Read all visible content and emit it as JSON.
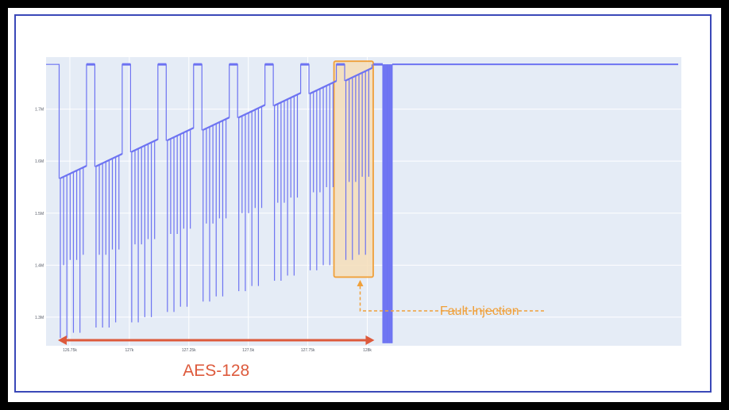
{
  "chart_data": {
    "type": "line",
    "title": "",
    "xlabel": "",
    "ylabel": "",
    "xlim": [
      126.65,
      129.32
    ],
    "ylim": [
      1.245,
      1.8
    ],
    "grid": true,
    "x_ticks": [
      {
        "value": 126.75,
        "label": "126.75k"
      },
      {
        "value": 127.0,
        "label": "127k"
      },
      {
        "value": 127.25,
        "label": "127.25k"
      },
      {
        "value": 127.5,
        "label": "127.5k"
      },
      {
        "value": 127.75,
        "label": "127.75k"
      },
      {
        "value": 128.0,
        "label": "128k"
      }
    ],
    "y_ticks": [
      {
        "value": 1.3,
        "label": "1.3M"
      },
      {
        "value": 1.4,
        "label": "1.4M"
      },
      {
        "value": 1.5,
        "label": "1.5M"
      },
      {
        "value": 1.6,
        "label": "1.6M"
      },
      {
        "value": 1.7,
        "label": "1.7M"
      }
    ],
    "idle_level": 1.786,
    "line_color": "#6d73f2",
    "rounds": [
      {
        "x_start": 126.71,
        "x_end": 126.82,
        "y_start": 1.567,
        "y_end": 1.591,
        "drops": [
          1.26,
          1.4,
          1.26,
          1.41,
          1.27,
          1.41,
          1.27,
          1.42
        ]
      },
      {
        "x_start": 126.86,
        "x_end": 126.97,
        "y_start": 1.59,
        "y_end": 1.614,
        "drops": [
          1.28,
          1.42,
          1.28,
          1.42,
          1.28,
          1.43,
          1.29,
          1.43
        ]
      },
      {
        "x_start": 127.01,
        "x_end": 127.12,
        "y_start": 1.618,
        "y_end": 1.642,
        "drops": [
          1.29,
          1.44,
          1.29,
          1.44,
          1.3,
          1.45,
          1.3,
          1.45
        ]
      },
      {
        "x_start": 127.16,
        "x_end": 127.27,
        "y_start": 1.64,
        "y_end": 1.664,
        "drops": [
          1.31,
          1.46,
          1.31,
          1.46,
          1.32,
          1.47,
          1.32,
          1.47
        ]
      },
      {
        "x_start": 127.31,
        "x_end": 127.42,
        "y_start": 1.66,
        "y_end": 1.684,
        "drops": [
          1.33,
          1.48,
          1.33,
          1.48,
          1.34,
          1.49,
          1.34,
          1.49
        ]
      },
      {
        "x_start": 127.46,
        "x_end": 127.57,
        "y_start": 1.684,
        "y_end": 1.708,
        "drops": [
          1.35,
          1.5,
          1.35,
          1.5,
          1.36,
          1.51,
          1.36,
          1.51
        ]
      },
      {
        "x_start": 127.61,
        "x_end": 127.72,
        "y_start": 1.707,
        "y_end": 1.731,
        "drops": [
          1.37,
          1.52,
          1.37,
          1.52,
          1.38,
          1.53,
          1.38,
          1.53
        ]
      },
      {
        "x_start": 127.76,
        "x_end": 127.87,
        "y_start": 1.73,
        "y_end": 1.754,
        "drops": [
          1.39,
          1.54,
          1.39,
          1.54,
          1.4,
          1.55,
          1.4,
          1.55
        ]
      },
      {
        "x_start": 127.91,
        "x_end": 128.02,
        "y_start": 1.755,
        "y_end": 1.779,
        "drops": [
          1.41,
          1.56,
          1.41,
          1.56,
          1.42,
          1.57,
          1.42,
          1.57
        ]
      }
    ]
  },
  "annotations": {
    "fault_label": "Fault Injection",
    "range_label": "AES-128"
  },
  "colors": {
    "trace": "#6d73f2",
    "plot_background": "#e5ecf6",
    "highlight_fill": "#f6deb8",
    "highlight_stroke": "#f0a03a",
    "range_arrow": "#dd5a3c",
    "border": "#3a48b8"
  }
}
